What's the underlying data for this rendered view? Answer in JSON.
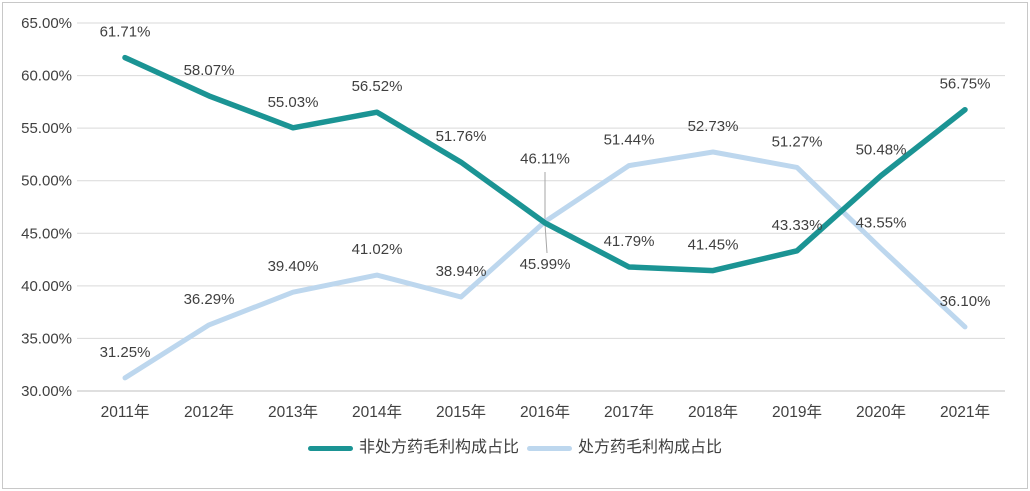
{
  "chart_data": {
    "type": "line",
    "title": "",
    "xlabel": "",
    "ylabel": "",
    "categories": [
      "2011年",
      "2012年",
      "2013年",
      "2014年",
      "2015年",
      "2016年",
      "2017年",
      "2018年",
      "2019年",
      "2020年",
      "2021年"
    ],
    "series": [
      {
        "name": "非处方药毛利构成占比",
        "color": "#1B9494",
        "values": [
          61.71,
          58.07,
          55.03,
          56.52,
          51.76,
          45.99,
          41.79,
          41.45,
          43.33,
          50.48,
          56.75
        ],
        "label_position_overrides": {
          "5": "below"
        }
      },
      {
        "name": "处方药毛利构成占比",
        "color": "#BDD7EE",
        "values": [
          31.25,
          36.29,
          39.4,
          41.02,
          38.94,
          46.11,
          51.44,
          52.73,
          51.27,
          43.55,
          36.1
        ],
        "label_position_overrides": {
          "5": "above-far"
        }
      }
    ],
    "y_axis": {
      "min": 30,
      "max": 65,
      "step": 5,
      "tick_decimals": 2,
      "tick_suffix": "%"
    },
    "data_label_decimals": 2,
    "data_label_suffix": "%",
    "grid": true,
    "legend_position": "bottom",
    "leader_line_at_category_index": 5,
    "colors": {
      "gridline": "#D9D9D9",
      "axis_line": "#BFBFBF",
      "text": "#404040",
      "leader": "#A6A6A6",
      "border": "#C8C8C8",
      "background": "#FFFFFF"
    }
  }
}
